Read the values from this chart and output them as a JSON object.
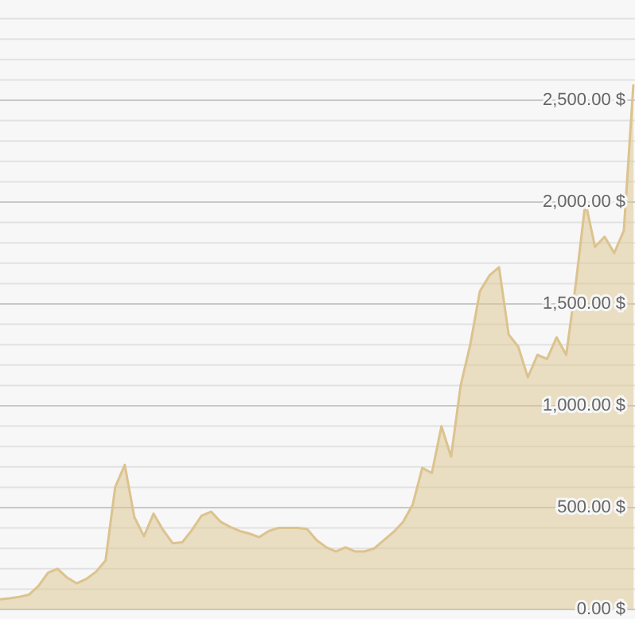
{
  "chart_data": {
    "type": "area",
    "categories": [
      null,
      null,
      null,
      null,
      null,
      null,
      null,
      null,
      null,
      null,
      null,
      null,
      null,
      null,
      null,
      null,
      null,
      null,
      null,
      null,
      null,
      null,
      null,
      null,
      null,
      null,
      null,
      null,
      null,
      null,
      null,
      null,
      null,
      null,
      null,
      null,
      null,
      null,
      null,
      null,
      null,
      null,
      null,
      null,
      null,
      null,
      null,
      null,
      null,
      null,
      null,
      null,
      null,
      null,
      null,
      null,
      null,
      null,
      null,
      null,
      null,
      null,
      null,
      null,
      null,
      null,
      null
    ],
    "series": [
      {
        "color": "#dcc38e",
        "values": [
          50,
          55,
          62,
          72,
          115,
          180,
          200,
          156,
          128,
          150,
          185,
          240,
          600,
          710,
          453,
          360,
          470,
          390,
          325,
          330,
          390,
          460,
          480,
          430,
          405,
          385,
          372,
          355,
          385,
          400,
          400,
          400,
          395,
          340,
          305,
          285,
          305,
          285,
          285,
          300,
          340,
          380,
          430,
          515,
          695,
          670,
          900,
          750,
          1100,
          1300,
          1562,
          1640,
          1680,
          1350,
          1290,
          1140,
          1250,
          1230,
          1336,
          1250,
          1600,
          2000,
          1780,
          1830,
          1750,
          1860,
          2578
        ]
      }
    ],
    "ylim": [
      0,
      3000
    ],
    "yticks": [
      {
        "value": 0,
        "label": "0.00 $"
      },
      {
        "value": 100,
        "label": null
      },
      {
        "value": 200,
        "label": null
      },
      {
        "value": 300,
        "label": null
      },
      {
        "value": 400,
        "label": null
      },
      {
        "value": 500,
        "label": "500.00 $"
      },
      {
        "value": 600,
        "label": null
      },
      {
        "value": 700,
        "label": null
      },
      {
        "value": 800,
        "label": null
      },
      {
        "value": 900,
        "label": null
      },
      {
        "value": 1000,
        "label": "1,000.00 $"
      },
      {
        "value": 1100,
        "label": null
      },
      {
        "value": 1200,
        "label": null
      },
      {
        "value": 1300,
        "label": null
      },
      {
        "value": 1400,
        "label": null
      },
      {
        "value": 1500,
        "label": "1,500.00 $"
      },
      {
        "value": 1600,
        "label": null
      },
      {
        "value": 1700,
        "label": null
      },
      {
        "value": 1800,
        "label": null
      },
      {
        "value": 1900,
        "label": null
      },
      {
        "value": 2000,
        "label": "2,000.00 $"
      },
      {
        "value": 2100,
        "label": null
      },
      {
        "value": 2200,
        "label": null
      },
      {
        "value": 2300,
        "label": null
      },
      {
        "value": 2400,
        "label": null
      },
      {
        "value": 2500,
        "label": "2,500.00 $"
      },
      {
        "value": 2600,
        "label": null
      },
      {
        "value": 2700,
        "label": null
      },
      {
        "value": 2800,
        "label": null
      },
      {
        "value": 2900,
        "label": null
      },
      {
        "value": 3000,
        "label": null
      }
    ],
    "grid": "y"
  }
}
